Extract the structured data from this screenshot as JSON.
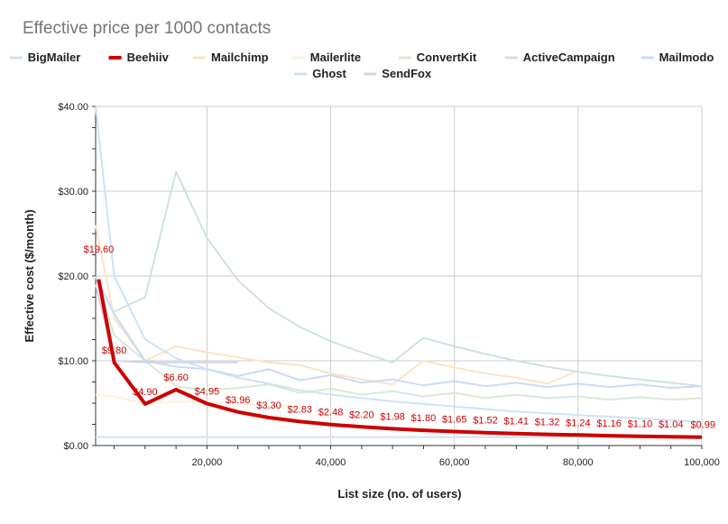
{
  "chart_data": {
    "type": "line",
    "title": "Effective price per 1000 contacts",
    "xlabel": "List size (no. of users)",
    "ylabel": "Effective cost ($/month)",
    "xlim": [
      2000,
      100000
    ],
    "ylim": [
      0,
      40
    ],
    "x_ticks": [
      20000,
      40000,
      60000,
      80000,
      100000
    ],
    "x_tick_labels": [
      "20,000",
      "40,000",
      "60,000",
      "80,000",
      "100,000"
    ],
    "y_ticks": [
      0,
      10,
      20,
      30,
      40
    ],
    "y_tick_labels": [
      "$0.00",
      "$10.00",
      "$20.00",
      "$30.00",
      "$40.00"
    ],
    "grid": true,
    "legend_position": "top",
    "series": [
      {
        "name": "BigMailer",
        "color": "#cfe2f3",
        "width": 2,
        "points": [
          [
            2000,
            1
          ],
          [
            10000,
            1
          ],
          [
            20000,
            1
          ],
          [
            30000,
            1
          ],
          [
            40000,
            1
          ],
          [
            50000,
            1
          ],
          [
            60000,
            1
          ],
          [
            70000,
            1
          ],
          [
            80000,
            1
          ],
          [
            90000,
            1
          ],
          [
            100000,
            1
          ]
        ]
      },
      {
        "name": "Beehiiv",
        "color": "#cc0000",
        "width": 4,
        "labels": true,
        "points": [
          [
            2500,
            19.6
          ],
          [
            5000,
            9.8
          ],
          [
            10000,
            4.9
          ],
          [
            15000,
            6.6
          ],
          [
            20000,
            4.95
          ],
          [
            25000,
            3.96
          ],
          [
            30000,
            3.3
          ],
          [
            35000,
            2.83
          ],
          [
            40000,
            2.48
          ],
          [
            45000,
            2.2
          ],
          [
            50000,
            1.98
          ],
          [
            55000,
            1.8
          ],
          [
            60000,
            1.65
          ],
          [
            65000,
            1.52
          ],
          [
            70000,
            1.41
          ],
          [
            75000,
            1.32
          ],
          [
            80000,
            1.24
          ],
          [
            85000,
            1.16
          ],
          [
            90000,
            1.1
          ],
          [
            95000,
            1.04
          ],
          [
            100000,
            0.99
          ]
        ],
        "point_labels": [
          "$19.60",
          "$9.80",
          "$4.90",
          "$6.60",
          "$4.95",
          "$3.96",
          "$3.30",
          "$2.83",
          "$2.48",
          "$2.20",
          "$1.98",
          "$1.80",
          "$1.65",
          "$1.52",
          "$1.41",
          "$1.32",
          "$1.24",
          "$1.16",
          "$1.10",
          "$1.04",
          "$0.99"
        ]
      },
      {
        "name": "Mailchimp",
        "color": "#fbe3c6",
        "width": 2,
        "points": [
          [
            2000,
            26
          ],
          [
            5000,
            15
          ],
          [
            10000,
            10
          ],
          [
            15000,
            11.7
          ],
          [
            20000,
            11
          ],
          [
            25000,
            10.4
          ],
          [
            30000,
            9.8
          ],
          [
            35000,
            9.5
          ],
          [
            40000,
            8.5
          ],
          [
            45000,
            7.8
          ],
          [
            50000,
            7.2
          ],
          [
            55000,
            10
          ],
          [
            60000,
            9.2
          ],
          [
            65000,
            8.5
          ],
          [
            70000,
            8
          ],
          [
            75000,
            7.3
          ],
          [
            80000,
            8.8
          ]
        ]
      },
      {
        "name": "Mailerlite",
        "color": "#fdf1d8",
        "width": 2,
        "points": [
          [
            2000,
            6
          ],
          [
            5000,
            5.8
          ],
          [
            10000,
            4.9
          ],
          [
            15000,
            5.2
          ],
          [
            20000,
            5.1
          ],
          [
            25000,
            5
          ],
          [
            30000,
            4.7
          ],
          [
            35000,
            4.6
          ]
        ]
      },
      {
        "name": "ConvertKit",
        "color": "#d9ead3",
        "width": 2,
        "points": [
          [
            2000,
            20
          ],
          [
            5000,
            13
          ],
          [
            10000,
            10
          ],
          [
            15000,
            7
          ],
          [
            20000,
            6.5
          ],
          [
            25000,
            6.8
          ],
          [
            30000,
            7.2
          ],
          [
            35000,
            6.2
          ],
          [
            40000,
            6.7
          ],
          [
            45000,
            6
          ],
          [
            50000,
            6.4
          ],
          [
            55000,
            5.8
          ],
          [
            60000,
            6.2
          ],
          [
            65000,
            5.6
          ],
          [
            70000,
            6
          ],
          [
            75000,
            5.6
          ],
          [
            80000,
            5.8
          ],
          [
            85000,
            5.4
          ],
          [
            90000,
            5.7
          ],
          [
            95000,
            5.4
          ],
          [
            100000,
            5.6
          ]
        ]
      },
      {
        "name": "ActiveCampaign",
        "color": "#d0e0e3",
        "width": 2,
        "points": [
          [
            5000,
            15.8
          ],
          [
            10000,
            17.5
          ],
          [
            15000,
            32.3
          ],
          [
            20000,
            24.5
          ],
          [
            25000,
            19.5
          ],
          [
            30000,
            16.2
          ],
          [
            35000,
            14
          ],
          [
            40000,
            12.3
          ],
          [
            45000,
            11
          ],
          [
            50000,
            9.8
          ],
          [
            55000,
            12.7
          ],
          [
            60000,
            11.7
          ],
          [
            65000,
            10.8
          ],
          [
            70000,
            10
          ],
          [
            75000,
            9.3
          ],
          [
            80000,
            8.7
          ],
          [
            85000,
            8.2
          ],
          [
            90000,
            7.8
          ],
          [
            95000,
            7.4
          ],
          [
            100000,
            7
          ]
        ]
      },
      {
        "name": "Mailmodo",
        "color": "#c9daf8",
        "width": 2,
        "points": [
          [
            2000,
            20
          ],
          [
            5000,
            15.5
          ],
          [
            10000,
            10
          ],
          [
            15000,
            9.3
          ],
          [
            20000,
            9
          ],
          [
            25000,
            8.2
          ],
          [
            30000,
            9
          ],
          [
            35000,
            7.7
          ],
          [
            40000,
            8.3
          ],
          [
            45000,
            7.4
          ],
          [
            50000,
            7.8
          ],
          [
            55000,
            7.1
          ],
          [
            60000,
            7.6
          ],
          [
            65000,
            7
          ],
          [
            70000,
            7.4
          ],
          [
            75000,
            6.9
          ],
          [
            80000,
            7.3
          ],
          [
            85000,
            6.9
          ],
          [
            90000,
            7.2
          ],
          [
            95000,
            6.8
          ],
          [
            100000,
            7
          ]
        ]
      },
      {
        "name": "Ghost",
        "color": "#cfe2f3",
        "width": 2,
        "points": [
          [
            2000,
            40
          ],
          [
            5000,
            20
          ],
          [
            10000,
            12.5
          ],
          [
            15000,
            10.3
          ],
          [
            20000,
            9
          ],
          [
            25000,
            8
          ],
          [
            30000,
            7.3
          ],
          [
            35000,
            6.5
          ],
          [
            40000,
            6
          ],
          [
            45000,
            5.6
          ],
          [
            50000,
            5.2
          ],
          [
            55000,
            4.9
          ],
          [
            60000,
            4.6
          ],
          [
            65000,
            4.3
          ],
          [
            70000,
            4
          ],
          [
            75000,
            3.8
          ],
          [
            80000,
            3.6
          ],
          [
            85000,
            3.4
          ],
          [
            90000,
            3.2
          ],
          [
            95000,
            3
          ],
          [
            100000,
            2.8
          ]
        ]
      },
      {
        "name": "SendFox",
        "color": "#d9d2e9",
        "width": 2,
        "points": [
          [
            2000,
            19
          ],
          [
            5000,
            10
          ],
          [
            10000,
            9.8
          ],
          [
            15000,
            9.8
          ],
          [
            20000,
            9.8
          ],
          [
            25000,
            9.8
          ]
        ]
      }
    ]
  }
}
